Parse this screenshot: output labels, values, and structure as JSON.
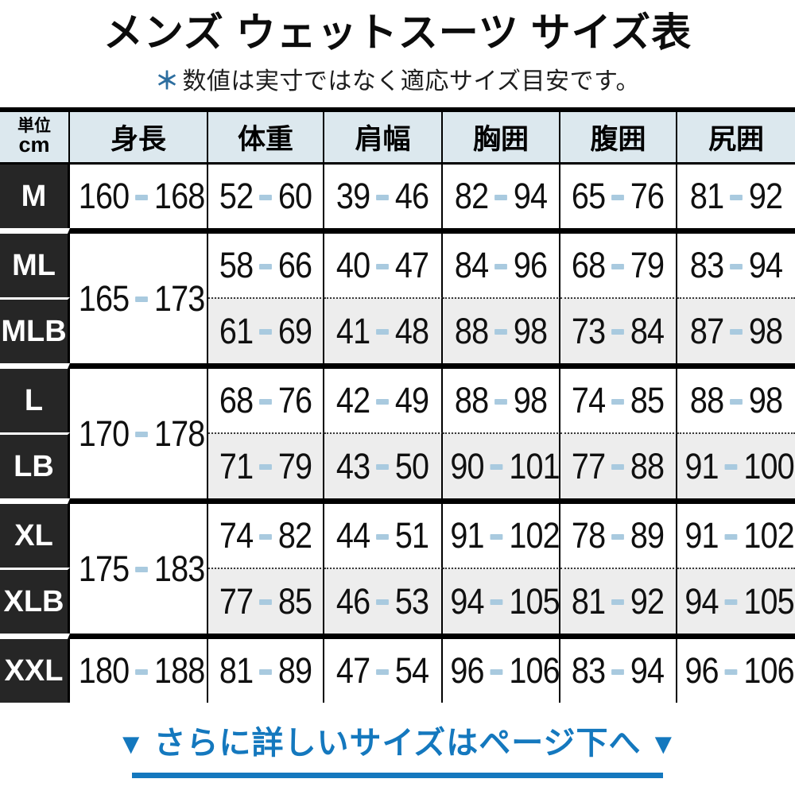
{
  "title": "メンズ ウェットスーツ サイズ表",
  "note": {
    "asterisk": "＊",
    "text": "数値は実寸ではなく適応サイズ目安です。"
  },
  "table": {
    "unit_header": {
      "line1": "単位",
      "line2": "cm"
    },
    "columns": [
      "身長",
      "体重",
      "肩幅",
      "胸囲",
      "腹囲",
      "尻囲"
    ],
    "groups": [
      {
        "height_range": [
          "160",
          "168"
        ],
        "rows": [
          {
            "size": "M",
            "shade": false,
            "values": [
              [
                "52",
                "60"
              ],
              [
                "39",
                "46"
              ],
              [
                "82",
                "94"
              ],
              [
                "65",
                "76"
              ],
              [
                "81",
                "92"
              ]
            ]
          }
        ]
      },
      {
        "height_range": [
          "165",
          "173"
        ],
        "rows": [
          {
            "size": "ML",
            "shade": false,
            "values": [
              [
                "58",
                "66"
              ],
              [
                "40",
                "47"
              ],
              [
                "84",
                "96"
              ],
              [
                "68",
                "79"
              ],
              [
                "83",
                "94"
              ]
            ]
          },
          {
            "size": "MLB",
            "shade": true,
            "values": [
              [
                "61",
                "69"
              ],
              [
                "41",
                "48"
              ],
              [
                "88",
                "98"
              ],
              [
                "73",
                "84"
              ],
              [
                "87",
                "98"
              ]
            ]
          }
        ]
      },
      {
        "height_range": [
          "170",
          "178"
        ],
        "rows": [
          {
            "size": "L",
            "shade": false,
            "values": [
              [
                "68",
                "76"
              ],
              [
                "42",
                "49"
              ],
              [
                "88",
                "98"
              ],
              [
                "74",
                "85"
              ],
              [
                "88",
                "98"
              ]
            ]
          },
          {
            "size": "LB",
            "shade": true,
            "values": [
              [
                "71",
                "79"
              ],
              [
                "43",
                "50"
              ],
              [
                "90",
                "101"
              ],
              [
                "77",
                "88"
              ],
              [
                "91",
                "100"
              ]
            ]
          }
        ]
      },
      {
        "height_range": [
          "175",
          "183"
        ],
        "rows": [
          {
            "size": "XL",
            "shade": false,
            "values": [
              [
                "74",
                "82"
              ],
              [
                "44",
                "51"
              ],
              [
                "91",
                "102"
              ],
              [
                "78",
                "89"
              ],
              [
                "91",
                "102"
              ]
            ]
          },
          {
            "size": "XLB",
            "shade": true,
            "values": [
              [
                "77",
                "85"
              ],
              [
                "46",
                "53"
              ],
              [
                "94",
                "105"
              ],
              [
                "81",
                "92"
              ],
              [
                "94",
                "105"
              ]
            ]
          }
        ]
      },
      {
        "height_range": [
          "180",
          "188"
        ],
        "rows": [
          {
            "size": "XXL",
            "shade": false,
            "values": [
              [
                "81",
                "89"
              ],
              [
                "47",
                "54"
              ],
              [
                "96",
                "106"
              ],
              [
                "83",
                "94"
              ],
              [
                "96",
                "106"
              ]
            ]
          }
        ]
      }
    ]
  },
  "footer": {
    "left_arrow": "▼",
    "text": "さらに詳しいサイズはページ下へ",
    "right_arrow": "▼"
  },
  "colors": {
    "header_bg": "#dce8ee",
    "label_bg": "#262626",
    "shade_bg": "#ededed",
    "dash": "#a9cadf",
    "note_blue": "#2d6e9f",
    "footer_blue": "#1478be"
  },
  "chart_data": {
    "type": "table",
    "title": "メンズ ウェットスーツ サイズ表",
    "subtitle": "＊数値は実寸ではなく適応サイズ目安です。",
    "unit": "cm",
    "columns": [
      "単位cm",
      "身長",
      "体重",
      "肩幅",
      "胸囲",
      "腹囲",
      "尻囲"
    ],
    "rows": [
      [
        "M",
        "160-168",
        "52-60",
        "39-46",
        "82-94",
        "65-76",
        "81-92"
      ],
      [
        "ML",
        "165-173",
        "58-66",
        "40-47",
        "84-96",
        "68-79",
        "83-94"
      ],
      [
        "MLB",
        "165-173",
        "61-69",
        "41-48",
        "88-98",
        "73-84",
        "87-98"
      ],
      [
        "L",
        "170-178",
        "68-76",
        "42-49",
        "88-98",
        "74-85",
        "88-98"
      ],
      [
        "LB",
        "170-178",
        "71-79",
        "43-50",
        "90-101",
        "77-88",
        "91-100"
      ],
      [
        "XL",
        "175-183",
        "74-82",
        "44-51",
        "91-102",
        "78-89",
        "91-102"
      ],
      [
        "XLB",
        "175-183",
        "77-85",
        "46-53",
        "94-105",
        "81-92",
        "94-105"
      ],
      [
        "XXL",
        "180-188",
        "81-89",
        "47-54",
        "96-106",
        "83-94",
        "96-106"
      ]
    ],
    "footer_note": "▼ さらに詳しいサイズはページ下へ ▼"
  }
}
